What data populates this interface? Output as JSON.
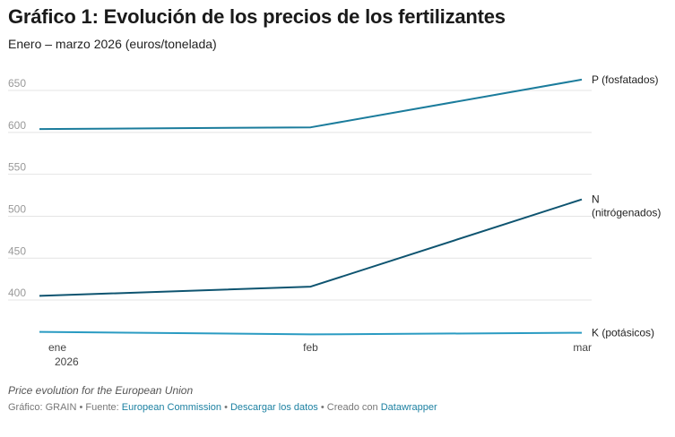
{
  "header": {
    "title": "Gráfico 1: Evolución de los precios de los fertilizantes",
    "subtitle": "Enero – marzo 2026 (euros/tonelada)"
  },
  "chart_data": {
    "type": "line",
    "title": "Gráfico 1: Evolución de los precios de los fertilizantes",
    "subtitle": "Enero – marzo 2026 (euros/tonelada)",
    "x_ticks": [
      {
        "line1": "ene",
        "line2": "2026"
      },
      {
        "line1": "feb",
        "line2": ""
      },
      {
        "line1": "mar",
        "line2": ""
      }
    ],
    "y_ticks": [
      400,
      450,
      500,
      550,
      600,
      650
    ],
    "ylim": [
      360,
      665
    ],
    "grid": true,
    "series": [
      {
        "label_lines": [
          "P (fosfatados)"
        ],
        "values": [
          604,
          606,
          663
        ],
        "color": "#1b7c9c"
      },
      {
        "label_lines": [
          "N",
          "(nitrógenados)"
        ],
        "values": [
          405,
          416,
          520
        ],
        "color": "#0e5470"
      },
      {
        "label_lines": [
          "K (potásicos)"
        ],
        "values": [
          362,
          359,
          361
        ],
        "color": "#2a9bc2"
      }
    ]
  },
  "footer": {
    "note": "Price evolution for the European Union",
    "credit_prefix": "Gráfico: GRAIN • Fuente: ",
    "source_link": "European Commission",
    "separator1": " • ",
    "download_link": "Descargar los datos",
    "credit_middle": " • Creado con ",
    "tool_link": "Datawrapper"
  }
}
